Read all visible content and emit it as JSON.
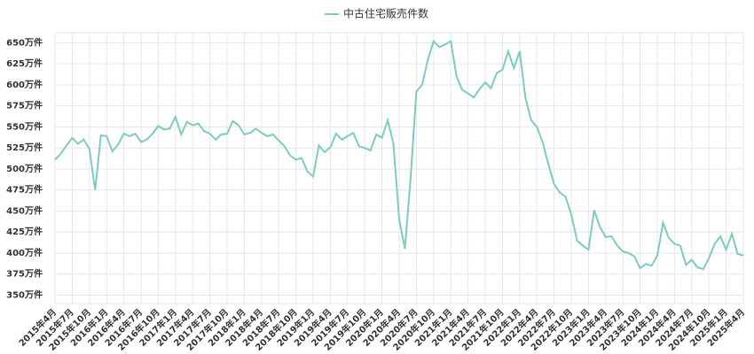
{
  "chart_data": {
    "type": "line",
    "categories": [
      "2015年4月",
      null,
      null,
      "2015年7月",
      null,
      null,
      "2015年10月",
      null,
      null,
      "2016年1月",
      null,
      null,
      "2016年4月",
      null,
      null,
      "2016年7月",
      null,
      null,
      "2016年10月",
      null,
      null,
      "2017年1月",
      null,
      null,
      "2017年4月",
      null,
      null,
      "2017年7月",
      null,
      null,
      "2017年10月",
      null,
      null,
      "2018年1月",
      null,
      null,
      "2018年4月",
      null,
      null,
      "2018年7月",
      null,
      null,
      "2018年10月",
      null,
      null,
      "2019年1月",
      null,
      null,
      "2019年4月",
      null,
      null,
      "2019年7月",
      null,
      null,
      "2019年10月",
      null,
      null,
      "2020年1月",
      null,
      null,
      "2020年4月",
      null,
      null,
      "2020年7月",
      null,
      null,
      "2020年10月",
      null,
      null,
      "2021年1月",
      null,
      null,
      "2021年4月",
      null,
      null,
      "2021年7月",
      null,
      null,
      "2021年10月",
      null,
      null,
      "2022年1月",
      null,
      null,
      "2022年4月",
      null,
      null,
      "2022年7月",
      null,
      null,
      "2022年10月",
      null,
      null,
      "2023年1月",
      null,
      null,
      "2023年4月",
      null,
      null,
      "2023年7月",
      null,
      null,
      "2023年10月",
      null,
      null,
      "2024年1月",
      null,
      null,
      "2024年4月",
      null,
      null,
      "2024年7月",
      null,
      null,
      "2024年10月",
      null,
      null,
      "2025年1月",
      null,
      null,
      "2025年4月"
    ],
    "series": [
      {
        "name": "中古住宅販売件数",
        "color": "#7ecbc1",
        "values": [
          511,
          518,
          528,
          537,
          530,
          535,
          524,
          475,
          540,
          539,
          521,
          529,
          542,
          539,
          542,
          532,
          535,
          542,
          551,
          547,
          548,
          562,
          541,
          556,
          552,
          554,
          545,
          542,
          535,
          541,
          542,
          557,
          552,
          541,
          543,
          548,
          543,
          539,
          541,
          534,
          527,
          516,
          511,
          513,
          497,
          491,
          528,
          520,
          526,
          542,
          535,
          539,
          543,
          527,
          525,
          522,
          541,
          537,
          558,
          530,
          440,
          405,
          490,
          592,
          600,
          630,
          652,
          645,
          648,
          652,
          610,
          594,
          590,
          585,
          595,
          603,
          596,
          614,
          618,
          640,
          620,
          640,
          585,
          558,
          550,
          532,
          506,
          482,
          472,
          467,
          446,
          415,
          409,
          404,
          451,
          431,
          419,
          420,
          409,
          402,
          400,
          396,
          382,
          387,
          385,
          397,
          436,
          418,
          411,
          409,
          386,
          392,
          383,
          381,
          394,
          411,
          420,
          404,
          423,
          399,
          397
        ]
      }
    ],
    "ylim": [
      340,
      662
    ],
    "yticks": [
      {
        "value": 350,
        "label": "350万件"
      },
      {
        "value": 375,
        "label": "375万件"
      },
      {
        "value": 400,
        "label": "400万件"
      },
      {
        "value": 425,
        "label": "425万件"
      },
      {
        "value": 450,
        "label": "450万件"
      },
      {
        "value": 475,
        "label": "475万件"
      },
      {
        "value": 500,
        "label": "500万件"
      },
      {
        "value": 525,
        "label": "525万件"
      },
      {
        "value": 550,
        "label": "550万件"
      },
      {
        "value": 575,
        "label": "575万件"
      },
      {
        "value": 600,
        "label": "600万件"
      },
      {
        "value": 625,
        "label": "625万件"
      },
      {
        "value": 650,
        "label": "650万件"
      }
    ],
    "grid": true,
    "legend": "top"
  }
}
